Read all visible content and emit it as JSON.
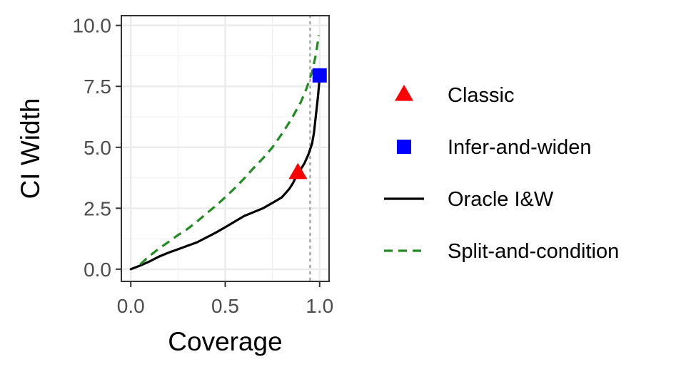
{
  "chart_data": {
    "type": "line",
    "xlabel": "Coverage",
    "ylabel": "CI Width",
    "xlim": [
      -0.05,
      1.05
    ],
    "ylim": [
      -0.5,
      10.4
    ],
    "x_ticks": [
      0.0,
      0.5,
      1.0
    ],
    "x_tick_labels": [
      "0.0",
      "0.5",
      "1.0"
    ],
    "y_ticks": [
      0.0,
      2.5,
      5.0,
      7.5,
      10.0
    ],
    "y_tick_labels": [
      "0.0",
      "2.5",
      "5.0",
      "7.5",
      "10.0"
    ],
    "grid": true,
    "reference_line": {
      "x": 0.95,
      "style": "dotted",
      "color": "#b3b3b3"
    },
    "legend_position": "right",
    "series": [
      {
        "name": "Classic",
        "kind": "point",
        "marker": "triangle",
        "color": "#ff0000",
        "points": [
          [
            0.885,
            3.95
          ]
        ]
      },
      {
        "name": "Infer-and-widen",
        "kind": "point",
        "marker": "square",
        "color": "#0000ff",
        "points": [
          [
            1.0,
            7.95
          ]
        ]
      },
      {
        "name": "Oracle I&W",
        "kind": "line",
        "style": "solid",
        "color": "#000000",
        "points": [
          [
            0.0,
            0.0
          ],
          [
            0.05,
            0.15
          ],
          [
            0.1,
            0.32
          ],
          [
            0.15,
            0.52
          ],
          [
            0.2,
            0.68
          ],
          [
            0.25,
            0.82
          ],
          [
            0.3,
            0.96
          ],
          [
            0.35,
            1.1
          ],
          [
            0.4,
            1.3
          ],
          [
            0.45,
            1.5
          ],
          [
            0.5,
            1.72
          ],
          [
            0.55,
            1.95
          ],
          [
            0.6,
            2.18
          ],
          [
            0.65,
            2.34
          ],
          [
            0.7,
            2.5
          ],
          [
            0.75,
            2.72
          ],
          [
            0.8,
            2.95
          ],
          [
            0.84,
            3.3
          ],
          [
            0.86,
            3.55
          ],
          [
            0.885,
            3.95
          ],
          [
            0.9,
            4.1
          ],
          [
            0.92,
            4.35
          ],
          [
            0.94,
            4.7
          ],
          [
            0.96,
            5.15
          ],
          [
            0.97,
            5.6
          ],
          [
            0.98,
            6.3
          ],
          [
            0.99,
            7.0
          ],
          [
            0.996,
            7.5
          ],
          [
            1.0,
            7.95
          ]
        ]
      },
      {
        "name": "Split-and-condition",
        "kind": "line",
        "style": "dashed",
        "color": "#228b22",
        "points": [
          [
            0.05,
            0.2
          ],
          [
            0.1,
            0.55
          ],
          [
            0.15,
            0.85
          ],
          [
            0.2,
            1.12
          ],
          [
            0.25,
            1.4
          ],
          [
            0.3,
            1.65
          ],
          [
            0.35,
            1.95
          ],
          [
            0.4,
            2.28
          ],
          [
            0.45,
            2.6
          ],
          [
            0.5,
            2.95
          ],
          [
            0.55,
            3.32
          ],
          [
            0.6,
            3.72
          ],
          [
            0.65,
            4.15
          ],
          [
            0.7,
            4.55
          ],
          [
            0.75,
            5.0
          ],
          [
            0.8,
            5.55
          ],
          [
            0.85,
            6.15
          ],
          [
            0.9,
            6.85
          ],
          [
            0.93,
            7.4
          ],
          [
            0.96,
            8.1
          ],
          [
            0.98,
            8.8
          ],
          [
            0.99,
            9.3
          ],
          [
            0.995,
            9.6
          ]
        ]
      }
    ]
  }
}
